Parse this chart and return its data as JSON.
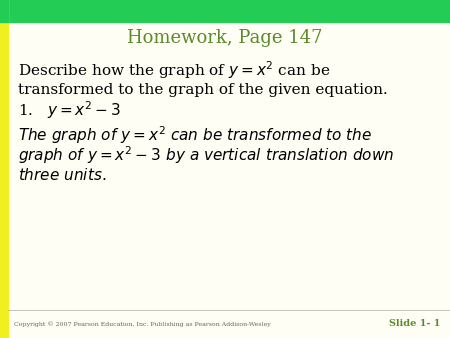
{
  "title": "Homework, Page 147",
  "title_color": "#5a8a2a",
  "title_fontsize": 13,
  "bg_color": "#fefef5",
  "left_bar_color": "#f0f020",
  "top_bar_color": "#22cc55",
  "body_fontsize": 11,
  "item_fontsize": 11,
  "answer_fontsize": 11,
  "copyright_text": "Copyright © 2007 Pearson Education, Inc. Publishing as Pearson Addison-Wesley",
  "slide_label": "Slide 1- 1",
  "slide_label_color": "#5a8a2a",
  "copyright_fontsize": 4.5,
  "slide_label_fontsize": 7
}
